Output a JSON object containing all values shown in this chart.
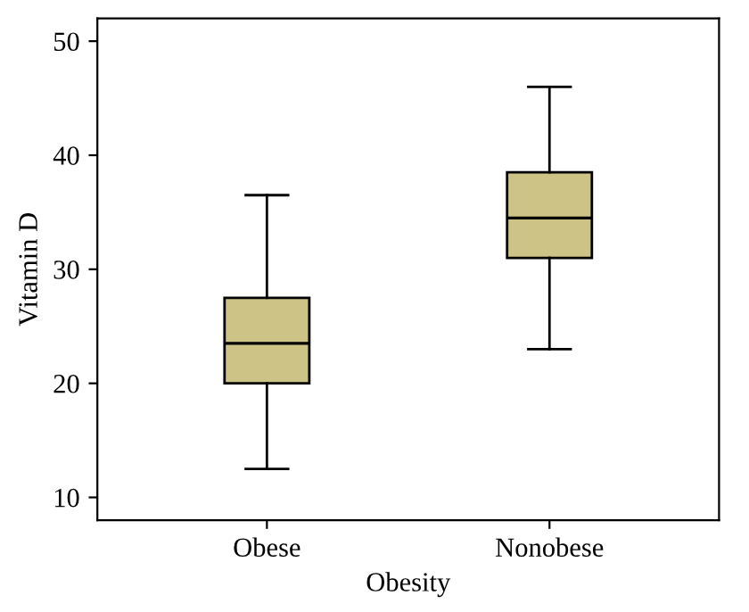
{
  "chart_data": {
    "type": "box",
    "xlabel": "Obesity",
    "ylabel": "Vitamin D",
    "categories": [
      "Obese",
      "Nonobese"
    ],
    "boxes": [
      {
        "low": 12.5,
        "q1": 20,
        "median": 23.5,
        "q3": 27.5,
        "high": 36.5
      },
      {
        "low": 23,
        "q1": 31,
        "median": 34.5,
        "q3": 38.5,
        "high": 46
      }
    ],
    "color": "#cec387",
    "ylim": [
      8,
      52
    ],
    "yticks": [
      10,
      20,
      30,
      40,
      50
    ],
    "grid": false
  }
}
